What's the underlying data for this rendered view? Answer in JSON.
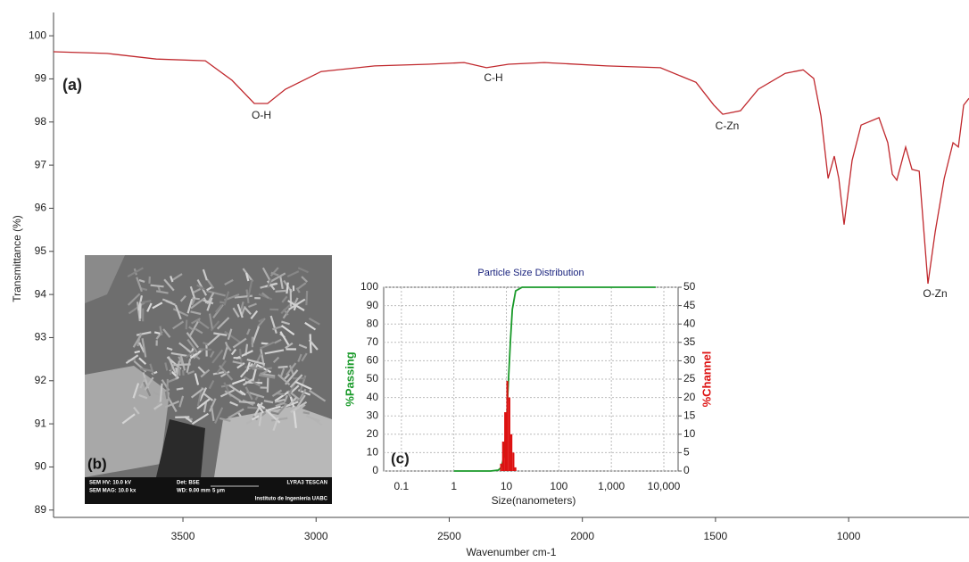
{
  "chart_data": [
    {
      "type": "line",
      "panel_label": "(a)",
      "x_label": "Wavenumber  cm-1",
      "y_label": "Transmittance  (%)",
      "x": [
        3986,
        3785,
        3600,
        3416,
        3316,
        3232,
        3182,
        3115,
        2981,
        2780,
        2578,
        2444,
        2360,
        2277,
        2143,
        1908,
        1707,
        1573,
        1506,
        1473,
        1406,
        1339,
        1238,
        1171,
        1131,
        1104,
        1077,
        1054,
        1037,
        1017,
        987,
        953,
        886,
        853,
        836,
        819,
        786,
        762,
        735,
        702,
        675,
        641,
        608,
        588,
        568,
        548
      ],
      "values": [
        99.63,
        99.59,
        99.46,
        99.42,
        98.97,
        98.43,
        98.43,
        98.76,
        99.17,
        99.3,
        99.34,
        99.38,
        99.26,
        99.34,
        99.38,
        99.3,
        99.26,
        98.92,
        98.39,
        98.18,
        98.26,
        98.76,
        99.13,
        99.21,
        99.01,
        98.14,
        96.69,
        97.21,
        96.69,
        95.62,
        97.11,
        97.93,
        98.1,
        97.52,
        96.79,
        96.65,
        97.42,
        96.9,
        96.86,
        94.25,
        95.45,
        96.69,
        97.52,
        97.42,
        98.39,
        98.55
      ],
      "color": "#c0282d",
      "xlim": [
        3986,
        548
      ],
      "ylim": [
        88.83,
        100.54
      ],
      "xticks": [
        3500,
        3000,
        2500,
        2000,
        1500,
        1000
      ],
      "yticks": [
        89,
        90,
        91,
        92,
        93,
        94,
        95,
        96,
        97,
        98,
        99,
        100
      ],
      "annotations": [
        "O-H",
        "C-H",
        "C-Zn",
        "O-Zn"
      ]
    },
    {
      "type": "combo",
      "title": "Particle Size Distribution",
      "panel_label": "(c)",
      "x_label": "Size(nanometers)",
      "log_x": true,
      "grid": true,
      "xlim": [
        0.046,
        18700
      ],
      "ylim": [
        0,
        100
      ],
      "y2lim": [
        0,
        50
      ],
      "xticks": [
        0.1,
        1,
        10,
        100,
        {
          "value": 1000,
          "label": "1,000"
        },
        {
          "value": 10000,
          "label": "10,000"
        }
      ],
      "yticks": [
        0,
        10,
        20,
        30,
        40,
        50,
        60,
        70,
        80,
        90,
        100
      ],
      "y2ticks": [
        0,
        5,
        10,
        15,
        20,
        25,
        30,
        35,
        40,
        45,
        50
      ],
      "series": [
        {
          "name": "%Passing",
          "type": "line",
          "color": "#1a9a2a",
          "x": [
            1,
            5,
            7,
            8,
            9,
            10,
            11,
            12,
            13,
            15,
            20,
            100,
            1000,
            7000
          ],
          "values": [
            0,
            0,
            0.5,
            2,
            8,
            25,
            50,
            72,
            88,
            98,
            100,
            100,
            100,
            100
          ]
        },
        {
          "name": "%Channel",
          "type": "histogram",
          "axis": "y2",
          "color": "#dd1111",
          "bins": [
            7.6,
            8.3,
            9.1,
            10,
            10.9,
            11.9,
            13,
            14.2,
            15.5
          ],
          "values": [
            2,
            8,
            16,
            24.5,
            20,
            10,
            5,
            1
          ]
        }
      ]
    }
  ],
  "sem_image": {
    "panel_label": "(b)",
    "footer": [
      "SEM HV: 10.0 kV",
      "Det: BSE",
      "LYRA3 TESCAN",
      "SEM MAG: 10.0 kx",
      "WD: 9.00 mm",
      "5 μm",
      "Instituto de Ingeniería UABC"
    ]
  }
}
